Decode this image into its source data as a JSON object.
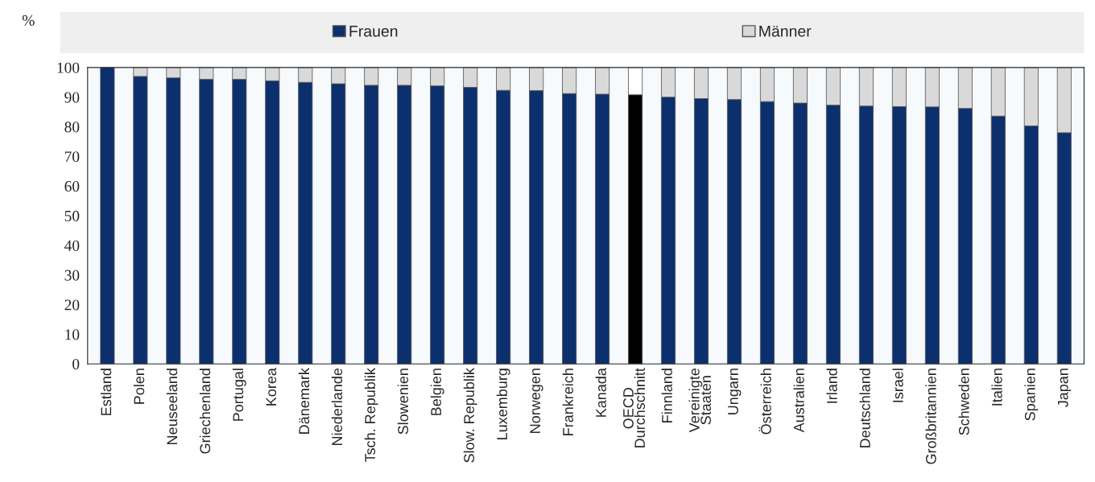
{
  "chart_data": {
    "type": "bar",
    "stacked": true,
    "ylabel": "%",
    "categories": [
      "Estland",
      "Polen",
      "Neuseeland",
      "Griechenland",
      "Portugal",
      "Korea",
      "Dänemark",
      "Niederlande",
      "Tsch. Republik",
      "Slowenien",
      "Belgien",
      "Slow. Republik",
      "Luxemburg",
      "Norwegen",
      "Frankreich",
      "Kanada",
      "OECD\nDurchschnitt",
      "Finnland",
      "Vereinigte\nStaaten",
      "Ungarn",
      "Österreich",
      "Australien",
      "Irland",
      "Deutschland",
      "Israel",
      "Großbritannien",
      "Schweden",
      "Italien",
      "Spanien",
      "Japan"
    ],
    "series": [
      {
        "name": "Frauen",
        "color": "#0c2f6e",
        "colors": [
          "#0c2f6e",
          "#0c2f6e",
          "#0c2f6e",
          "#0c2f6e",
          "#0c2f6e",
          "#0c2f6e",
          "#0c2f6e",
          "#0c2f6e",
          "#0c2f6e",
          "#0c2f6e",
          "#0c2f6e",
          "#0c2f6e",
          "#0c2f6e",
          "#0c2f6e",
          "#0c2f6e",
          "#0c2f6e",
          "#000000",
          "#0c2f6e",
          "#0c2f6e",
          "#0c2f6e",
          "#0c2f6e",
          "#0c2f6e",
          "#0c2f6e",
          "#0c2f6e",
          "#0c2f6e",
          "#0c2f6e",
          "#0c2f6e",
          "#0c2f6e",
          "#0c2f6e",
          "#0c2f6e"
        ],
        "values": [
          100,
          97,
          96.5,
          96,
          96,
          95.5,
          95,
          94.5,
          94,
          94,
          93.8,
          93.3,
          92.3,
          92.2,
          91.2,
          91,
          90.8,
          90,
          89.5,
          89.2,
          88.5,
          88,
          87.3,
          87,
          86.8,
          86.7,
          86.2,
          83.6,
          80.3,
          78
        ]
      },
      {
        "name": "Männer",
        "color": "#d9d9d9",
        "colors": [
          "#d9d9d9",
          "#d9d9d9",
          "#d9d9d9",
          "#d9d9d9",
          "#d9d9d9",
          "#d9d9d9",
          "#d9d9d9",
          "#d9d9d9",
          "#d9d9d9",
          "#d9d9d9",
          "#d9d9d9",
          "#d9d9d9",
          "#d9d9d9",
          "#d9d9d9",
          "#d9d9d9",
          "#d9d9d9",
          "#ffffff",
          "#d9d9d9",
          "#d9d9d9",
          "#d9d9d9",
          "#d9d9d9",
          "#d9d9d9",
          "#d9d9d9",
          "#d9d9d9",
          "#d9d9d9",
          "#d9d9d9",
          "#d9d9d9",
          "#d9d9d9",
          "#d9d9d9",
          "#d9d9d9"
        ],
        "values": [
          null,
          3,
          3.5,
          4,
          4,
          4.5,
          5,
          5.5,
          6,
          6,
          6.2,
          6.7,
          7.7,
          7.8,
          8.8,
          9,
          9.2,
          10,
          10.5,
          10.8,
          11.5,
          12,
          12.7,
          13,
          13.2,
          13.3,
          13.8,
          16.4,
          19.7,
          22
        ]
      }
    ],
    "ylim": [
      0,
      100
    ],
    "yticks": [
      0,
      10,
      20,
      30,
      40,
      50,
      60,
      70,
      80,
      90,
      100
    ],
    "grid": false,
    "legend": "top"
  }
}
